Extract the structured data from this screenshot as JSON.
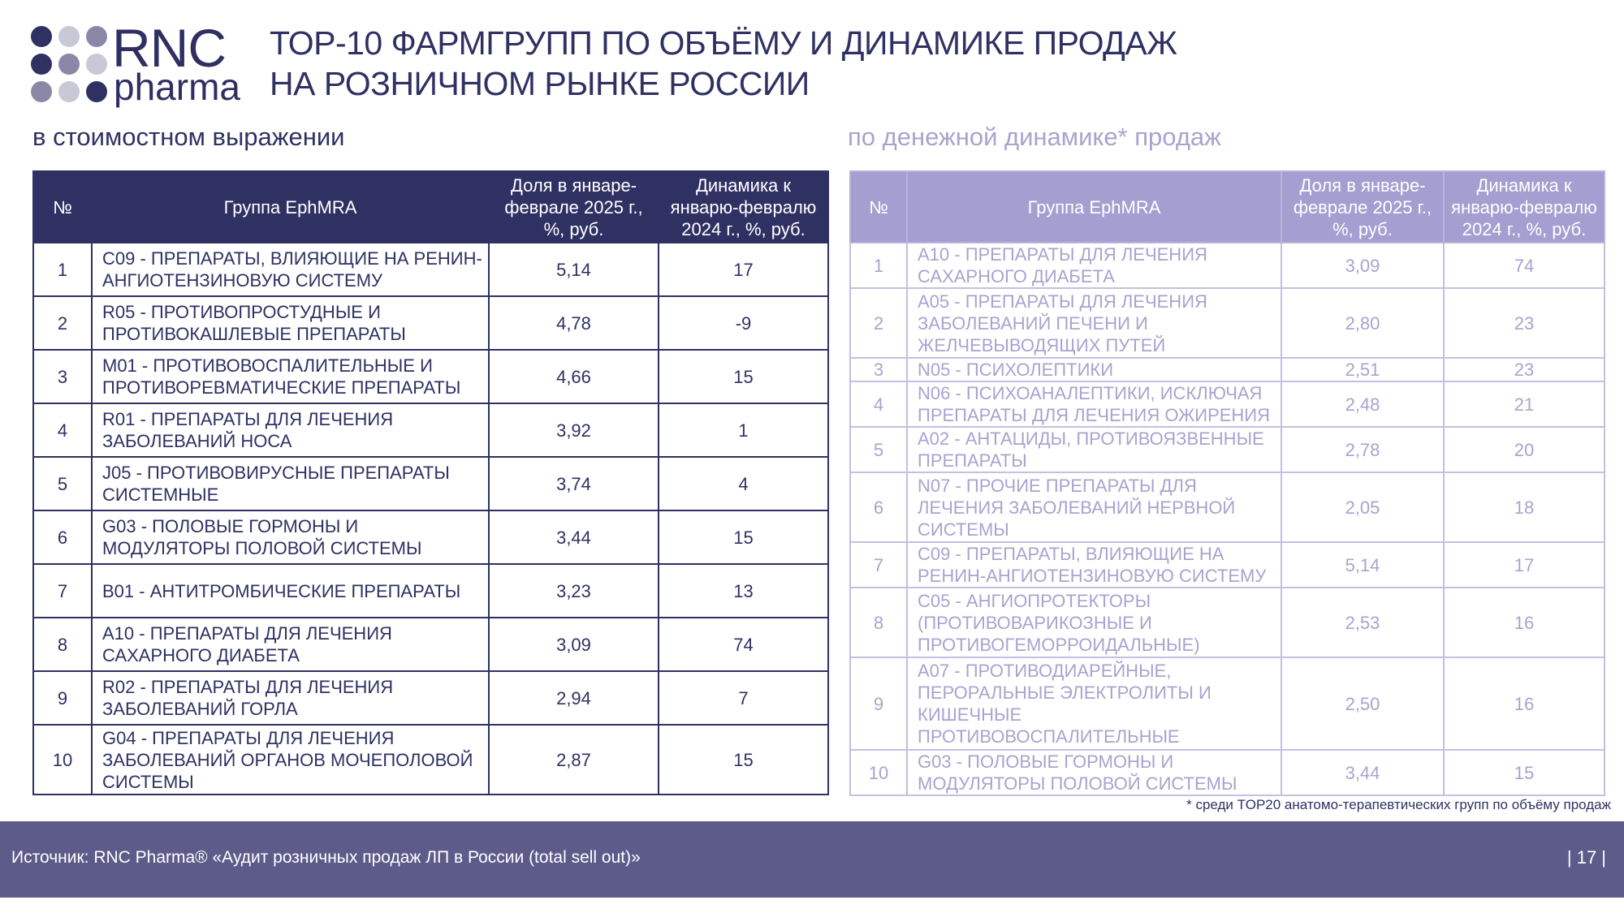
{
  "brand": {
    "name": "RNC",
    "sub": "pharma"
  },
  "title": {
    "line1": "ТОР-10 ФАРМГРУПП ПО ОБЪЁМУ И ДИНАМИКЕ ПРОДАЖ",
    "line2": "НА РОЗНИЧНОМ РЫНКЕ РОССИИ"
  },
  "left": {
    "subtitle": "в стоимостном выражении",
    "headers": {
      "num": "№",
      "group": "Группа EphMRA",
      "share": "Доля в январе-феврале 2025 г., %, руб.",
      "dyn": "Динамика к январю-февралю 2024 г., %, руб."
    },
    "rows": [
      {
        "num": "1",
        "group": "C09 - ПРЕПАРАТЫ, ВЛИЯЮЩИЕ НА РЕНИН-АНГИОТЕНЗИНОВУЮ СИСТЕМУ",
        "share": "5,14",
        "dyn": "17"
      },
      {
        "num": "2",
        "group": "R05 - ПРОТИВОПРОСТУДНЫЕ И ПРОТИВОКАШЛЕВЫЕ ПРЕПАРАТЫ",
        "share": "4,78",
        "dyn": "-9"
      },
      {
        "num": "3",
        "group": "M01 - ПРОТИВОВОСПАЛИТЕЛЬНЫЕ И ПРОТИВОРЕВМАТИЧЕСКИЕ ПРЕПАРАТЫ",
        "share": "4,66",
        "dyn": "15"
      },
      {
        "num": "4",
        "group": "R01 - ПРЕПАРАТЫ ДЛЯ ЛЕЧЕНИЯ ЗАБОЛЕВАНИЙ НОСА",
        "share": "3,92",
        "dyn": "1"
      },
      {
        "num": "5",
        "group": "J05 - ПРОТИВОВИРУСНЫЕ ПРЕПАРАТЫ СИСТЕМНЫЕ",
        "share": "3,74",
        "dyn": "4"
      },
      {
        "num": "6",
        "group": "G03 - ПОЛОВЫЕ ГОРМОНЫ И МОДУЛЯТОРЫ ПОЛОВОЙ СИСТЕМЫ",
        "share": "3,44",
        "dyn": "15"
      },
      {
        "num": "7",
        "group": "B01 - АНТИТРОМБИЧЕСКИЕ ПРЕПАРАТЫ",
        "share": "3,23",
        "dyn": "13"
      },
      {
        "num": "8",
        "group": "A10 - ПРЕПАРАТЫ ДЛЯ ЛЕЧЕНИЯ САХАРНОГО ДИАБЕТА",
        "share": "3,09",
        "dyn": "74"
      },
      {
        "num": "9",
        "group": "R02 - ПРЕПАРАТЫ ДЛЯ ЛЕЧЕНИЯ ЗАБОЛЕВАНИЙ ГОРЛА",
        "share": "2,94",
        "dyn": "7"
      },
      {
        "num": "10",
        "group": "G04 - ПРЕПАРАТЫ ДЛЯ ЛЕЧЕНИЯ ЗАБОЛЕВАНИЙ ОРГАНОВ МОЧЕПОЛОВОЙ СИСТЕМЫ",
        "share": "2,87",
        "dyn": "15"
      }
    ]
  },
  "right": {
    "subtitle": "по денежной динамике* продаж",
    "headers": {
      "num": "№",
      "group": "Группа EphMRA",
      "share": "Доля в январе-феврале 2025 г., %, руб.",
      "dyn": "Динамика к январю-февралю 2024 г., %, руб."
    },
    "rows": [
      {
        "num": "1",
        "group": "A10 - ПРЕПАРАТЫ ДЛЯ ЛЕЧЕНИЯ САХАРНОГО ДИАБЕТА",
        "share": "3,09",
        "dyn": "74"
      },
      {
        "num": "2",
        "group": "A05 - ПРЕПАРАТЫ ДЛЯ ЛЕЧЕНИЯ ЗАБОЛЕВАНИЙ ПЕЧЕНИ И ЖЕЛЧЕВЫВОДЯЩИХ ПУТЕЙ",
        "share": "2,80",
        "dyn": "23"
      },
      {
        "num": "3",
        "group": "N05 - ПСИХОЛЕПТИКИ",
        "share": "2,51",
        "dyn": "23"
      },
      {
        "num": "4",
        "group": "N06 - ПСИХОАНАЛЕПТИКИ, ИСКЛЮЧАЯ ПРЕПАРАТЫ ДЛЯ ЛЕЧЕНИЯ ОЖИРЕНИЯ",
        "share": "2,48",
        "dyn": "21"
      },
      {
        "num": "5",
        "group": "A02 - АНТАЦИДЫ, ПРОТИВОЯЗВЕННЫЕ ПРЕПАРАТЫ",
        "share": "2,78",
        "dyn": "20"
      },
      {
        "num": "6",
        "group": "N07 - ПРОЧИЕ ПРЕПАРАТЫ ДЛЯ ЛЕЧЕНИЯ ЗАБОЛЕВАНИЙ НЕРВНОЙ СИСТЕМЫ",
        "share": "2,05",
        "dyn": "18"
      },
      {
        "num": "7",
        "group": "C09 - ПРЕПАРАТЫ, ВЛИЯЮЩИЕ НА РЕНИН-АНГИОТЕНЗИНОВУЮ СИСТЕМУ",
        "share": "5,14",
        "dyn": "17"
      },
      {
        "num": "8",
        "group": "C05 - АНГИОПРОТЕКТОРЫ (ПРОТИВОВАРИКОЗНЫЕ И ПРОТИВОГЕМОРРОИДАЛЬНЫЕ)",
        "share": "2,53",
        "dyn": "16"
      },
      {
        "num": "9",
        "group": "A07 - ПРОТИВОДИАРЕЙНЫЕ, ПЕРОРАЛЬНЫЕ ЭЛЕКТРОЛИТЫ И КИШЕЧНЫЕ ПРОТИВОВОСПАЛИТЕЛЬНЫЕ",
        "share": "2,50",
        "dyn": "16"
      },
      {
        "num": "10",
        "group": "G03 - ПОЛОВЫЕ ГОРМОНЫ И МОДУЛЯТОРЫ ПОЛОВОЙ СИСТЕМЫ",
        "share": "3,44",
        "dyn": "15"
      }
    ]
  },
  "footnote": "* среди TOP20 анатомо-терапевтических групп по объёму продаж",
  "footer": {
    "source": "Источник: RNC Pharma® «Аудит розничных продаж ЛП в России (total sell out)»",
    "page": "| 17 |"
  },
  "colors": {
    "navy": "#2f3163",
    "lavender": "#a59ed0",
    "footer": "#5d5b8a"
  }
}
